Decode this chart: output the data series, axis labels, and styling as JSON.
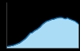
{
  "x": [
    0,
    1,
    2,
    3,
    4,
    5,
    6,
    7,
    8,
    9,
    10,
    11,
    12,
    13,
    14,
    15,
    16,
    17,
    18,
    19,
    20,
    21,
    22,
    23,
    24,
    25,
    26,
    27,
    28,
    29,
    30,
    31,
    32,
    33,
    34,
    35,
    36,
    37,
    38,
    39,
    40,
    41,
    42,
    43,
    44,
    45,
    46,
    47,
    48,
    49,
    50,
    51,
    52,
    53,
    54,
    55,
    56,
    57,
    58,
    59,
    60
  ],
  "y": [
    0.03,
    0.03,
    0.04,
    0.04,
    0.05,
    0.05,
    0.06,
    0.07,
    0.08,
    0.09,
    0.1,
    0.11,
    0.13,
    0.15,
    0.17,
    0.19,
    0.21,
    0.24,
    0.27,
    0.3,
    0.33,
    0.33,
    0.35,
    0.37,
    0.39,
    0.4,
    0.42,
    0.44,
    0.46,
    0.49,
    0.52,
    0.54,
    0.56,
    0.58,
    0.59,
    0.6,
    0.61,
    0.62,
    0.63,
    0.63,
    0.64,
    0.65,
    0.66,
    0.66,
    0.67,
    0.67,
    0.67,
    0.66,
    0.65,
    0.64,
    0.65,
    0.66,
    0.64,
    0.63,
    0.62,
    0.61,
    0.6,
    0.59,
    0.57,
    0.55,
    0.53
  ],
  "line_color": "#1880c8",
  "fill_color": "#aadcf5",
  "background_color": "#000000",
  "plot_bg_color": "#000000",
  "ylim": [
    0,
    1.0
  ],
  "xlim": [
    0,
    60
  ]
}
